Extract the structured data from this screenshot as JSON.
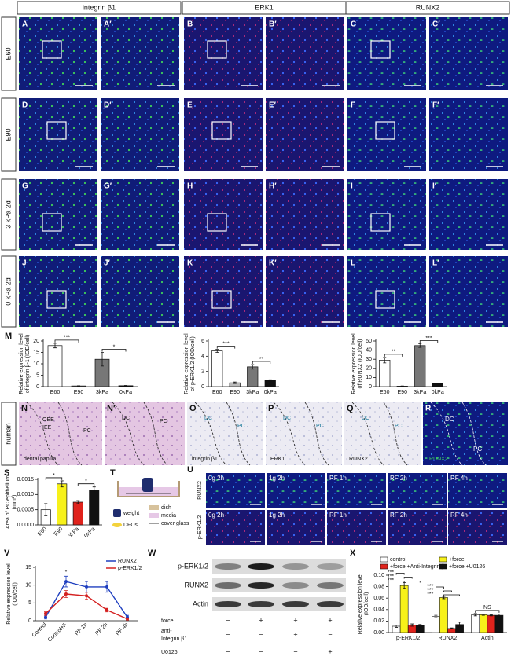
{
  "micrographs": {
    "columns": [
      "integrin β1",
      "ERK1",
      "RUNX2"
    ],
    "rows": [
      {
        "label": "E60",
        "letters": [
          "A",
          "A′",
          "B",
          "B′",
          "C",
          "C′"
        ]
      },
      {
        "label": "E90",
        "letters": [
          "D",
          "D′",
          "E",
          "E′",
          "F",
          "F′"
        ]
      },
      {
        "label": "3 kPa 2d",
        "letters": [
          "G",
          "G′",
          "H",
          "H′",
          "I",
          "I′"
        ]
      },
      {
        "label": "0 kPa 2d",
        "letters": [
          "J",
          "J′",
          "K",
          "K′",
          "L",
          "L′"
        ]
      }
    ]
  },
  "panel_M": {
    "letter": "M",
    "charts": [
      {
        "type": "bar",
        "ylabel": [
          "Relative expression level",
          "of integrin β-1 (IOD/cell)"
        ],
        "categories": [
          "E60",
          "E90",
          "3kPa",
          "0kPa"
        ],
        "values": [
          18,
          0.3,
          12,
          0.4
        ],
        "errors": [
          1,
          0.1,
          3,
          0.1
        ],
        "colors": [
          "#ffffff",
          "#bbbbbb",
          "#777777",
          "#111111"
        ],
        "ylim": [
          0,
          20
        ],
        "yticks": [
          0,
          5,
          10,
          15,
          20
        ],
        "significance": [
          "***",
          "*"
        ]
      },
      {
        "type": "bar",
        "ylabel": [
          "Relative expression level",
          "of p-ERK1/2 (IOD/cell)"
        ],
        "categories": [
          "E60",
          "E90",
          "3kPa",
          "0kPa"
        ],
        "values": [
          4.7,
          0.5,
          2.6,
          0.8
        ],
        "errors": [
          0.2,
          0.1,
          0.3,
          0.1
        ],
        "colors": [
          "#ffffff",
          "#bbbbbb",
          "#777777",
          "#111111"
        ],
        "ylim": [
          0,
          6
        ],
        "yticks": [
          0,
          2,
          4,
          6
        ],
        "significance": [
          "***",
          "**"
        ]
      },
      {
        "type": "bar",
        "ylabel": [
          "Relative expression level",
          "of RUNX2 (IOD/cell)"
        ],
        "categories": [
          "E60",
          "E90",
          "3kPa",
          "0kPa"
        ],
        "values": [
          29,
          0.5,
          45,
          3.5
        ],
        "errors": [
          3,
          0.2,
          2,
          0.3
        ],
        "colors": [
          "#ffffff",
          "#bbbbbb",
          "#777777",
          "#111111"
        ],
        "ylim": [
          0,
          50
        ],
        "yticks": [
          0,
          10,
          20,
          30,
          40,
          50
        ],
        "significance": [
          "**",
          "***"
        ]
      }
    ]
  },
  "human": {
    "label": "human",
    "panels": [
      {
        "letter": "N",
        "labels": [
          "OEE",
          "IEE",
          "PC",
          "dental papilla"
        ]
      },
      {
        "letter": "N′",
        "labels": [
          "DC",
          "PC"
        ]
      },
      {
        "letter": "O",
        "labels": [
          "DC",
          "PC",
          "integrin β1"
        ]
      },
      {
        "letter": "P",
        "labels": [
          "DC",
          "PC",
          "ERK1"
        ]
      },
      {
        "letter": "Q",
        "labels": [
          "DC",
          "PC",
          "RUNX2"
        ]
      },
      {
        "letter": "R",
        "labels": [
          "DC",
          "PC",
          "RUNX2"
        ]
      }
    ]
  },
  "panel_S": {
    "letter": "S",
    "type": "bar",
    "ylabel": [
      "Area of PC epithelium",
      "(mm²)"
    ],
    "categories": [
      "E60",
      "E90",
      "3kPa",
      "0kPa"
    ],
    "values": [
      0.0005,
      0.00135,
      0.00075,
      0.00115
    ],
    "errors": [
      0.0002,
      0.0001,
      5e-05,
      0.0001
    ],
    "colors": [
      "#ffffff",
      "#f7f11a",
      "#e0231c",
      "#111111"
    ],
    "ylim": [
      0,
      0.0015
    ],
    "yticks": [
      {
        "value": 0,
        "label": "0.0000"
      },
      0.0005,
      {
        "value": 0.001,
        "label": "0.0010"
      },
      0.0015
    ],
    "significance": [
      "*",
      "*"
    ]
  },
  "panel_T": {
    "letter": "T",
    "labels": [
      "weight",
      "DFCs"
    ],
    "legend": [
      "dish",
      "media",
      "cover glass"
    ]
  },
  "panel_U": {
    "letter": "U",
    "rows": [
      "RUNX2",
      "p-ERK1/2"
    ],
    "conditions": [
      "0g 2h",
      "1g 2h",
      "RF 1h",
      "RF 2h",
      "RF 4h"
    ]
  },
  "panel_V": {
    "letter": "V",
    "type": "line",
    "ylabel": [
      "Relative expression level",
      "(IOD/cell)"
    ],
    "categories": [
      "Control",
      "Control+F",
      "RF 1h",
      "RF 2h",
      "RF 4h"
    ],
    "series": [
      {
        "name": "RUNX2",
        "color": "#1f3fbf",
        "values": [
          1,
          11,
          9.5,
          9.5,
          1
        ],
        "errors": [
          0.5,
          1.5,
          1.5,
          1.5,
          0.5
        ]
      },
      {
        "name": "p-ERK1/2",
        "color": "#d42020",
        "values": [
          2,
          7.5,
          7,
          3,
          0.5
        ],
        "errors": [
          0.5,
          1,
          1,
          0.5,
          0.3
        ]
      }
    ],
    "ylim": [
      0,
      15
    ],
    "yticks": [
      0,
      5,
      10,
      15
    ],
    "annotation": "*"
  },
  "panel_W": {
    "letter": "W",
    "blots": [
      "p-ERK1/2",
      "RUNX2",
      "Actin"
    ],
    "conditions": [
      {
        "label": [
          "force"
        ],
        "marks": [
          "−",
          "+",
          "+",
          "+"
        ]
      },
      {
        "label": [
          "anti-",
          "Integrin β1"
        ],
        "marks": [
          "−",
          "−",
          "+",
          "−"
        ]
      },
      {
        "label": [
          "U0126"
        ],
        "marks": [
          "−",
          "−",
          "−",
          "+"
        ]
      }
    ]
  },
  "panel_X": {
    "letter": "X",
    "type": "bar",
    "ylabel": [
      "Relative expression level",
      "(IOD/cell)"
    ],
    "categories": [
      "p-ERK1/2",
      "RUNX2",
      "Actin"
    ],
    "series": [
      {
        "name": "control",
        "color": "#ffffff",
        "values": [
          0.011,
          0.028,
          0.031
        ],
        "errors": [
          0.002,
          0.002,
          0.002
        ]
      },
      {
        "name": "+force",
        "color": "#f7f11a",
        "values": [
          0.082,
          0.061,
          0.031
        ],
        "errors": [
          0.005,
          0.002,
          0.001
        ]
      },
      {
        "name": "+force +Anti-Integrin β1",
        "color": "#e0231c",
        "values": [
          0.013,
          0.007,
          0.03
        ],
        "errors": [
          0.002,
          0.001,
          0.001
        ]
      },
      {
        "name": "+force +U0126",
        "color": "#111111",
        "values": [
          0.012,
          0.014,
          0.03
        ],
        "errors": [
          0.002,
          0.004,
          0.002
        ]
      }
    ],
    "ylim": [
      0,
      0.1
    ],
    "yticks": [
      {
        "value": 0,
        "label": "0.00"
      },
      0.02,
      0.04,
      0.06,
      0.08,
      {
        "value": 0.1,
        "label": "0.10"
      }
    ],
    "significance": [
      [
        "***",
        "***",
        "***"
      ],
      [
        "***",
        "***",
        "***"
      ],
      [
        "NS"
      ]
    ]
  }
}
